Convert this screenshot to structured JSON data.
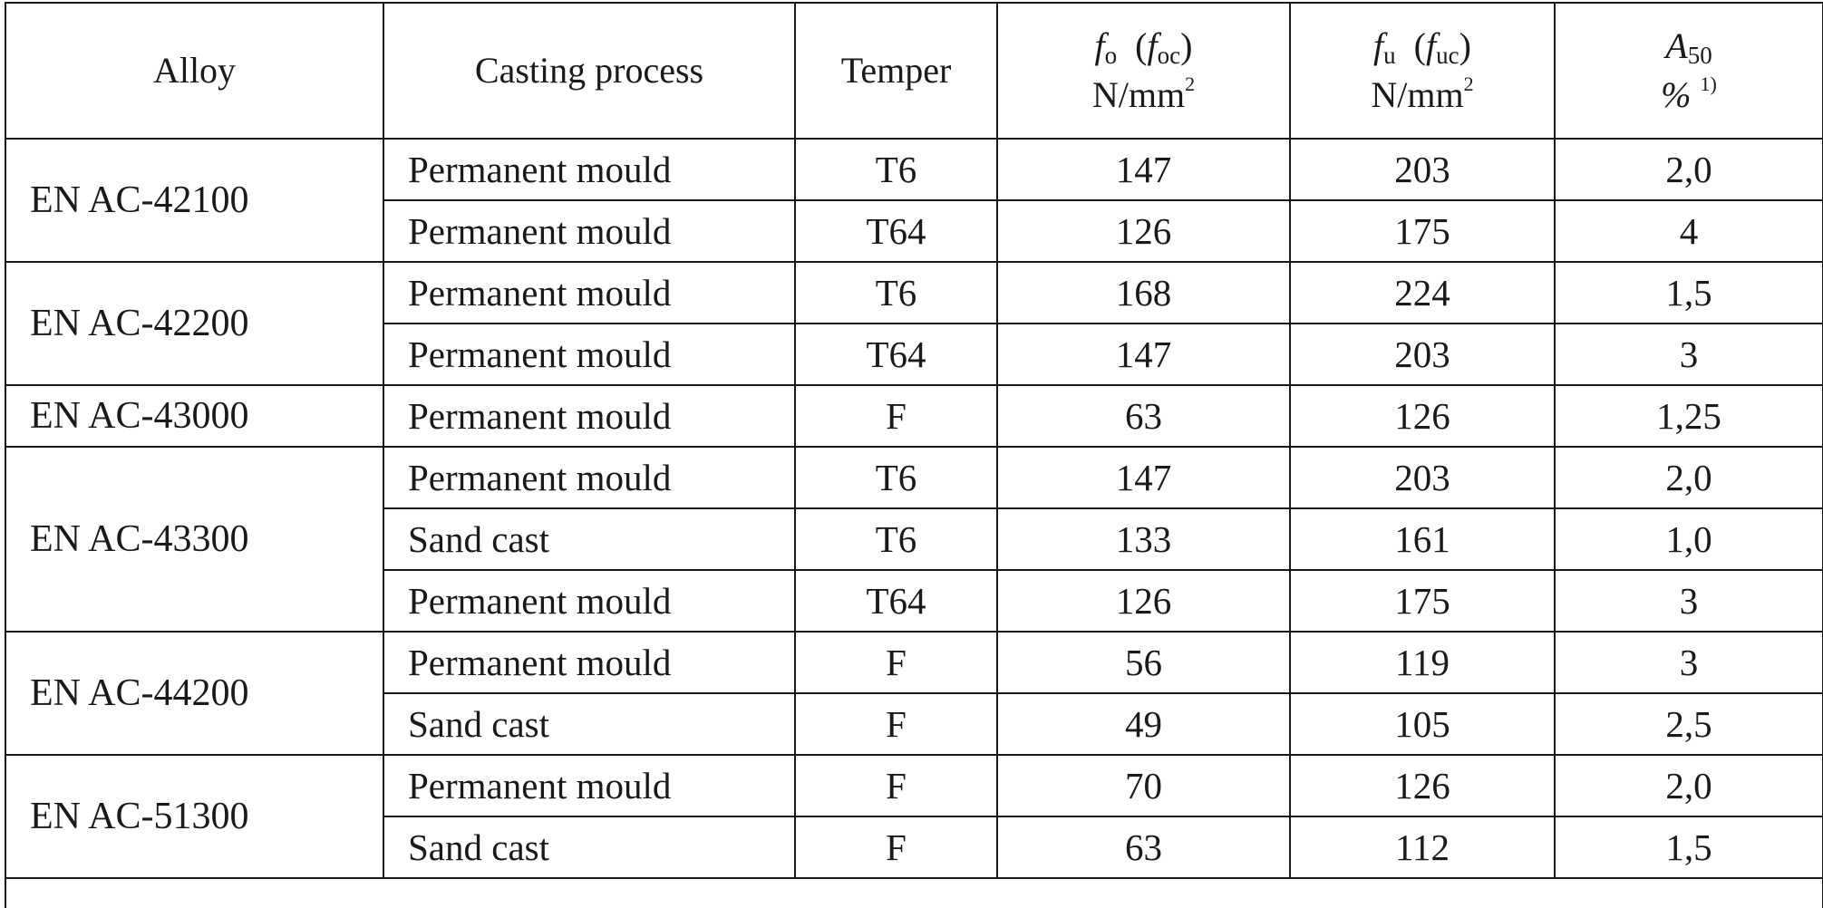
{
  "header": {
    "alloy": "Alloy",
    "process": "Casting process",
    "temper": "Temper",
    "fo": {
      "sym": "f",
      "sub": "o",
      "alt_sym": "f",
      "alt_sub": "oc",
      "unit": "N/mm",
      "unit_sup": "2"
    },
    "fu": {
      "sym": "f",
      "sub": "u",
      "alt_sym": "f",
      "alt_sub": "uc",
      "unit": "N/mm",
      "unit_sup": "2"
    },
    "a50": {
      "sym": "A",
      "sub": "50",
      "unit": "%",
      "footnote": "1)"
    }
  },
  "groups": [
    {
      "alloy": "EN AC-42100",
      "rows": [
        {
          "process": "Permanent mould",
          "temper": "T6",
          "fo": "147",
          "fu": "203",
          "a50": "2,0"
        },
        {
          "process": "Permanent mould",
          "temper": "T64",
          "fo": "126",
          "fu": "175",
          "a50": "4"
        }
      ]
    },
    {
      "alloy": "EN AC-42200",
      "rows": [
        {
          "process": "Permanent mould",
          "temper": "T6",
          "fo": "168",
          "fu": "224",
          "a50": "1,5"
        },
        {
          "process": "Permanent mould",
          "temper": "T64",
          "fo": "147",
          "fu": "203",
          "a50": "3"
        }
      ]
    },
    {
      "alloy": "EN AC-43000",
      "rows": [
        {
          "process": "Permanent mould",
          "temper": "F",
          "fo": "63",
          "fu": "126",
          "a50": "1,25"
        }
      ]
    },
    {
      "alloy": "EN AC-43300",
      "rows": [
        {
          "process": "Permanent mould",
          "temper": "T6",
          "fo": "147",
          "fu": "203",
          "a50": "2,0"
        },
        {
          "process": "Sand cast",
          "temper": "T6",
          "fo": "133",
          "fu": "161",
          "a50": "1,0"
        },
        {
          "process": "Permanent mould",
          "temper": "T64",
          "fo": "126",
          "fu": "175",
          "a50": "3"
        }
      ]
    },
    {
      "alloy": "EN AC-44200",
      "rows": [
        {
          "process": "Permanent mould",
          "temper": "F",
          "fo": "56",
          "fu": "119",
          "a50": "3"
        },
        {
          "process": "Sand cast",
          "temper": "F",
          "fo": "49",
          "fu": "105",
          "a50": "2,5"
        }
      ]
    },
    {
      "alloy": "EN AC-51300",
      "rows": [
        {
          "process": "Permanent mould",
          "temper": "F",
          "fo": "70",
          "fu": "126",
          "a50": "2,0"
        },
        {
          "process": "Sand cast",
          "temper": "F",
          "fo": "63",
          "fu": "112",
          "a50": "1,5"
        }
      ]
    }
  ]
}
